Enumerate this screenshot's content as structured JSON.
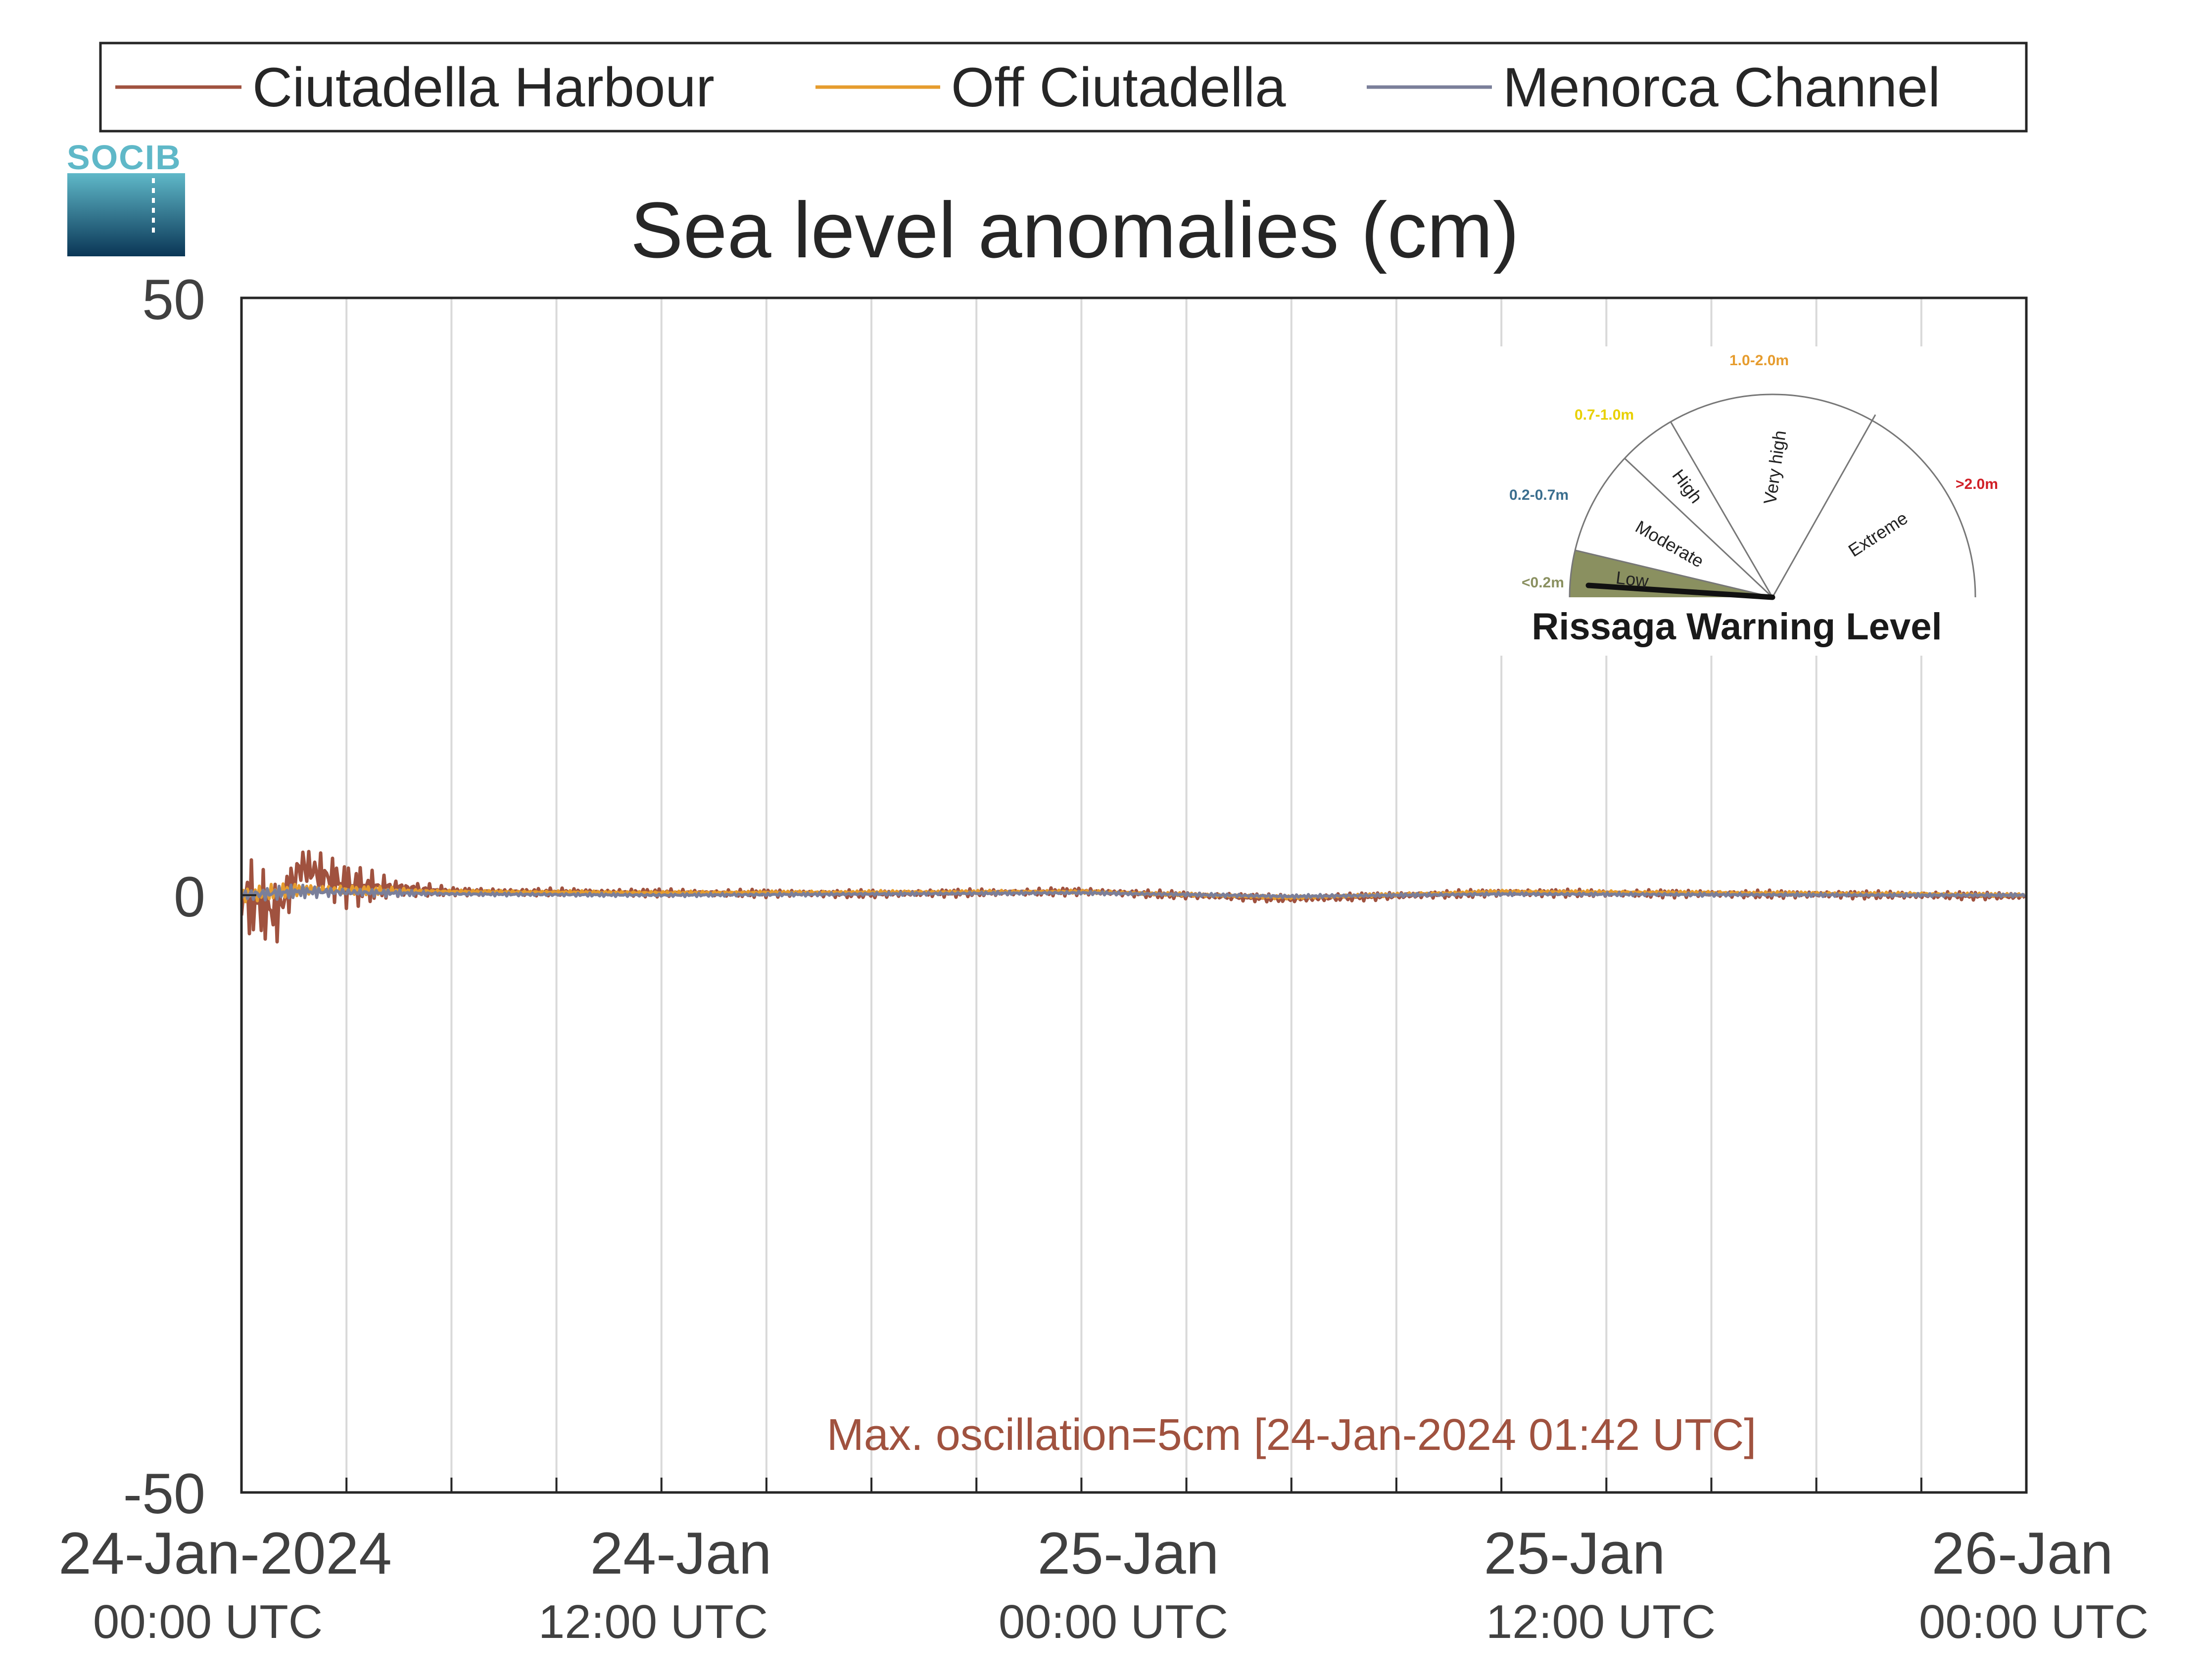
{
  "chart_data": {
    "type": "line",
    "title": "Sea level anomalies (cm)",
    "xlabel": "",
    "ylabel": "",
    "ylim": [
      -50,
      50
    ],
    "yticks": [
      50,
      0,
      -50
    ],
    "xlim": [
      "2024-01-24 00:00",
      "2024-01-26 03:00"
    ],
    "xticks": [
      {
        "line1": "24-Jan-2024",
        "line2": "00:00 UTC"
      },
      {
        "line1": "24-Jan",
        "line2": "12:00 UTC"
      },
      {
        "line1": "25-Jan",
        "line2": "00:00 UTC"
      },
      {
        "line1": "25-Jan",
        "line2": "12:00 UTC"
      },
      {
        "line1": "26-Jan",
        "line2": "00:00 UTC"
      }
    ],
    "grid": "vertical",
    "legend_position": "top",
    "series": [
      {
        "name": "Ciutadella Harbour",
        "color": "#a0523f",
        "x": [
          "2024-01-24 00:00",
          "2024-01-24 01:00",
          "2024-01-24 01:42",
          "2024-01-24 03:00",
          "2024-01-24 06:00",
          "2024-01-24 12:00",
          "2024-01-24 18:00",
          "2024-01-25 00:00",
          "2024-01-25 06:00",
          "2024-01-25 12:00",
          "2024-01-25 18:00",
          "2024-01-26 00:00",
          "2024-01-26 03:00"
        ],
        "y": [
          0,
          -1.5,
          2.5,
          0.8,
          0.3,
          0.2,
          0.1,
          0.3,
          -0.3,
          0.2,
          0.1,
          0,
          -0.1
        ]
      },
      {
        "name": "Off Ciutadella",
        "color": "#e69c2e",
        "x": [
          "2024-01-24 00:00",
          "2024-01-24 01:42",
          "2024-01-24 06:00",
          "2024-01-24 12:00",
          "2024-01-25 00:00",
          "2024-01-25 06:00",
          "2024-01-25 12:00",
          "2024-01-26 00:00",
          "2024-01-26 03:00"
        ],
        "y": [
          0,
          0.5,
          0.3,
          0.2,
          0.3,
          -0.2,
          0.3,
          0.1,
          0
        ]
      },
      {
        "name": "Menorca Channel",
        "color": "#7a7f9a",
        "x": [
          "2024-01-24 00:00",
          "2024-01-24 01:42",
          "2024-01-24 06:00",
          "2024-01-24 12:00",
          "2024-01-25 00:00",
          "2024-01-25 06:00",
          "2024-01-25 12:00",
          "2024-01-26 00:00",
          "2024-01-26 03:00"
        ],
        "y": [
          0,
          0.3,
          0.1,
          0,
          0.2,
          -0.1,
          0.1,
          0,
          0
        ]
      }
    ],
    "annotation": {
      "text": "Max. oscillation=5cm [24-Jan-2024 01:42 UTC]",
      "color": "#a0523f"
    }
  },
  "logo": {
    "text": "SOCIB"
  },
  "gauge": {
    "title": "Rissaga Warning Level",
    "current_level": "Low",
    "categories": [
      {
        "name": "Low",
        "range": "<0.2m",
        "range_color": "#8a9060"
      },
      {
        "name": "Moderate",
        "range": "0.2-0.7m",
        "range_color": "#3a6e8e"
      },
      {
        "name": "High",
        "range": "0.7-1.0m",
        "range_color": "#e8d000"
      },
      {
        "name": "Very high",
        "range": "1.0-2.0m",
        "range_color": "#e69c2e"
      },
      {
        "name": "Extreme",
        "range": ">2.0m",
        "range_color": "#d01f26"
      }
    ],
    "low_fill": "#8a9060"
  },
  "colors": {
    "axis": "#262626",
    "grid": "#d9d9d9"
  }
}
